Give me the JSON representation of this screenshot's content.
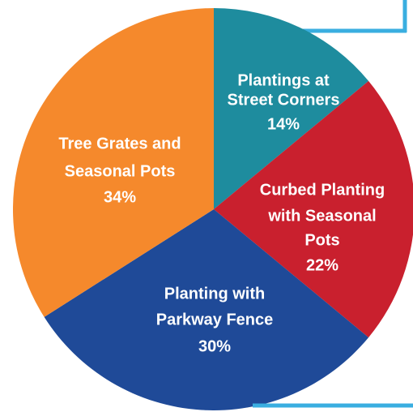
{
  "chart_data": {
    "type": "pie",
    "categories": [
      [
        "Plantings at",
        "Street Corners"
      ],
      [
        "Curbed Planting",
        "with Seasonal",
        "Pots"
      ],
      [
        "Planting with",
        "Parkway Fence"
      ],
      [
        "Tree Grates and",
        "Seasonal Pots"
      ]
    ],
    "values": [
      14,
      22,
      30,
      34
    ],
    "value_labels": [
      "14%",
      "22%",
      "30%",
      "34%"
    ],
    "colors": [
      "#1e8c9e",
      "#c9202e",
      "#1f4a98",
      "#f5892c"
    ]
  }
}
